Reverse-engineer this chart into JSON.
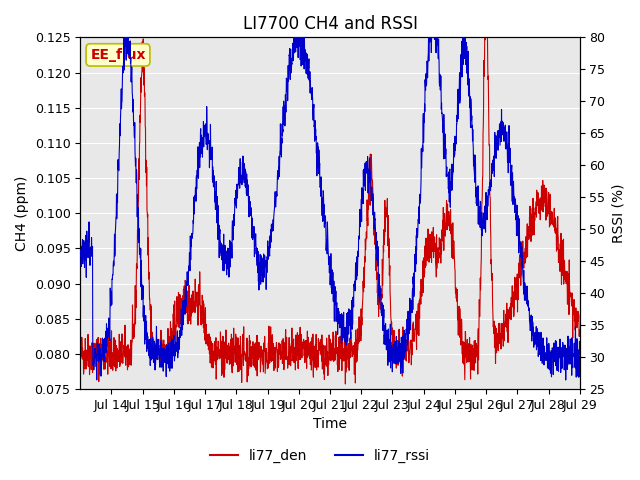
{
  "title": "LI7700 CH4 and RSSI",
  "xlabel": "Time",
  "ylabel_left": "CH4 (ppm)",
  "ylabel_right": "RSSI (%)",
  "ylim_left": [
    0.075,
    0.125
  ],
  "ylim_right": [
    25,
    80
  ],
  "yticks_left": [
    0.075,
    0.08,
    0.085,
    0.09,
    0.095,
    0.1,
    0.105,
    0.11,
    0.115,
    0.12,
    0.125
  ],
  "yticks_right": [
    25,
    30,
    35,
    40,
    45,
    50,
    55,
    60,
    65,
    70,
    75,
    80
  ],
  "xtick_labels": [
    "Jul 14",
    "Jul 15",
    "Jul 16",
    "Jul 17",
    "Jul 18",
    "Jul 19",
    "Jul 20",
    "Jul 21",
    "Jul 22",
    "Jul 23",
    "Jul 24",
    "Jul 25",
    "Jul 26",
    "Jul 27",
    "Jul 28",
    "Jul 29"
  ],
  "color_ch4": "#cc0000",
  "color_rssi": "#0000cc",
  "legend_label_ch4": "li77_den",
  "legend_label_rssi": "li77_rssi",
  "annotation_text": "EE_flux",
  "annotation_color": "#cc0000",
  "annotation_bg": "#ffffcc",
  "annotation_border": "#bbbb00",
  "bg_color": "#e8e8e8",
  "title_fontsize": 12,
  "axis_fontsize": 10,
  "tick_fontsize": 9
}
